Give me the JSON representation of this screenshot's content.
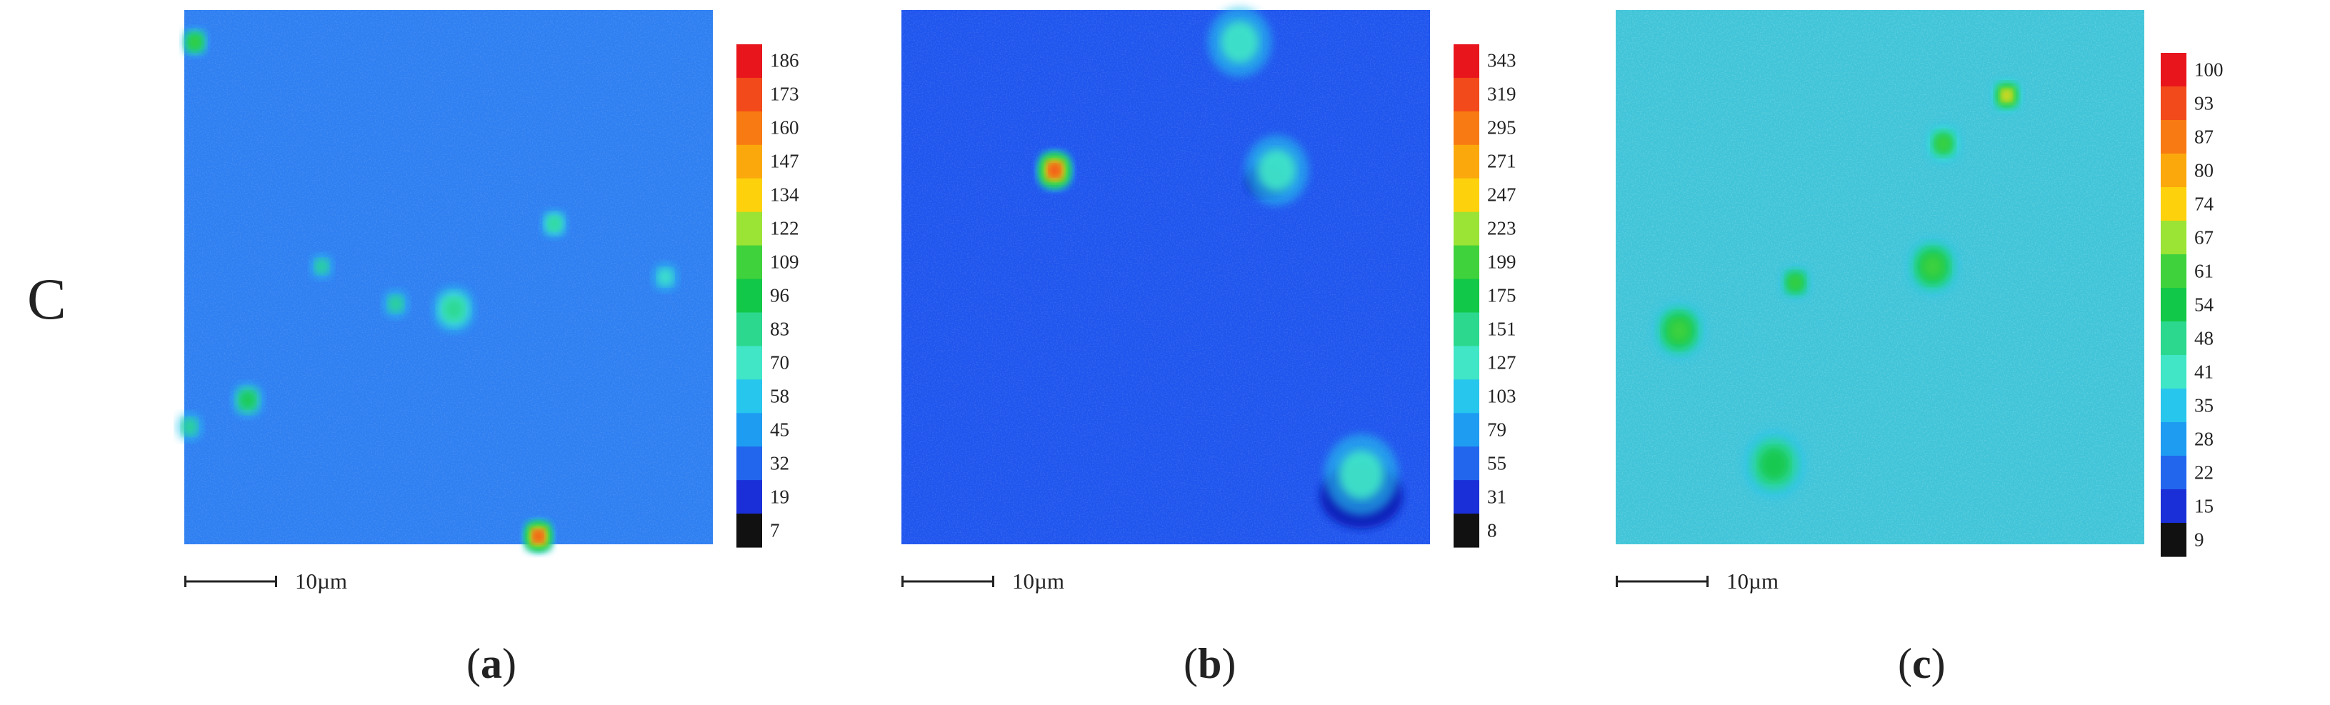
{
  "row_label": "C",
  "chart_data": [
    {
      "type": "heatmap",
      "caption": "a",
      "scale_label": "10µm",
      "colorbar_ticks": [
        186,
        173,
        160,
        147,
        134,
        122,
        109,
        96,
        83,
        70,
        58,
        45,
        32,
        19,
        7
      ],
      "base_color": "#2e7ff2",
      "hotspots": [
        {
          "x": 0.02,
          "y": 0.06,
          "r": 0.025,
          "level": 0.55
        },
        {
          "x": 0.67,
          "y": 0.985,
          "r": 0.03,
          "level": 1.0
        },
        {
          "x": 0.12,
          "y": 0.73,
          "r": 0.03,
          "level": 0.4
        },
        {
          "x": 0.51,
          "y": 0.56,
          "r": 0.04,
          "level": 0.33
        },
        {
          "x": 0.7,
          "y": 0.4,
          "r": 0.025,
          "level": 0.32
        },
        {
          "x": 0.26,
          "y": 0.48,
          "r": 0.022,
          "level": 0.3
        },
        {
          "x": 0.4,
          "y": 0.55,
          "r": 0.025,
          "level": 0.26
        },
        {
          "x": 0.91,
          "y": 0.5,
          "r": 0.025,
          "level": 0.24
        },
        {
          "x": 0.01,
          "y": 0.78,
          "r": 0.025,
          "level": 0.26
        }
      ]
    },
    {
      "type": "heatmap",
      "caption": "b",
      "scale_label": "10µm",
      "colorbar_ticks": [
        343,
        319,
        295,
        271,
        247,
        223,
        199,
        175,
        151,
        127,
        103,
        79,
        55,
        31,
        8
      ],
      "base_color": "#1f55ee",
      "hotspots": [
        {
          "x": 0.29,
          "y": 0.3,
          "r": 0.035,
          "level": 1.0
        },
        {
          "x": 0.71,
          "y": 0.3,
          "r": 0.06,
          "level": 0.2
        },
        {
          "x": 0.87,
          "y": 0.87,
          "r": 0.07,
          "level": 0.2
        },
        {
          "x": 0.64,
          "y": 0.06,
          "r": 0.06,
          "level": 0.15
        }
      ],
      "dark_spots": [
        {
          "x": 0.69,
          "y": 0.32,
          "r": 0.03
        },
        {
          "x": 0.87,
          "y": 0.91,
          "r": 0.06
        }
      ]
    },
    {
      "type": "heatmap",
      "caption": "c",
      "scale_label": "10µm",
      "colorbar_ticks": [
        100,
        93,
        87,
        80,
        74,
        67,
        61,
        54,
        48,
        41,
        35,
        28,
        22,
        15,
        9
      ],
      "base_color": "#3fc4d8",
      "hotspots": [
        {
          "x": 0.74,
          "y": 0.16,
          "r": 0.03,
          "level": 0.7
        },
        {
          "x": 0.6,
          "y": 0.48,
          "r": 0.05,
          "level": 0.55
        },
        {
          "x": 0.12,
          "y": 0.6,
          "r": 0.05,
          "level": 0.55
        },
        {
          "x": 0.34,
          "y": 0.51,
          "r": 0.03,
          "level": 0.5
        },
        {
          "x": 0.62,
          "y": 0.25,
          "r": 0.035,
          "level": 0.45
        },
        {
          "x": 0.3,
          "y": 0.85,
          "r": 0.06,
          "level": 0.38
        }
      ]
    }
  ],
  "colorbar_colors": [
    "#e8161c",
    "#f24a1a",
    "#f87a12",
    "#fba80c",
    "#fdd20c",
    "#9be334",
    "#3fd23c",
    "#12c848",
    "#2cd88e",
    "#40e6c6",
    "#27c6ec",
    "#1e9cf2",
    "#2266ee",
    "#1a2fd8",
    "#111111"
  ]
}
